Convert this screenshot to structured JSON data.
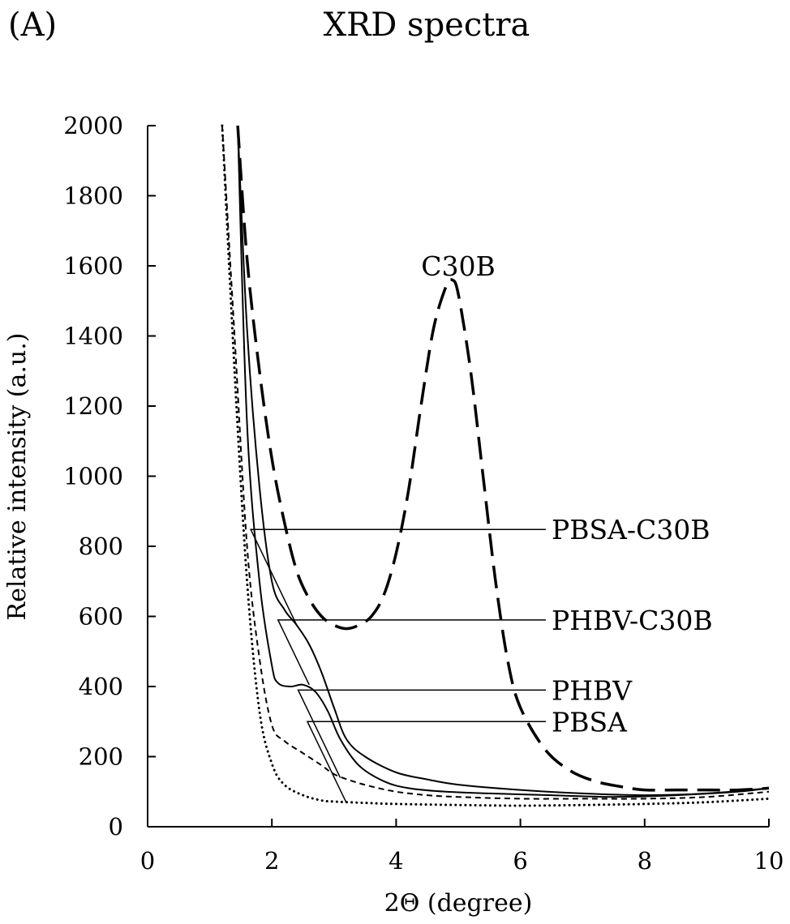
{
  "panel_label": "(A)",
  "chart_data": {
    "type": "line",
    "title": "XRD spectra",
    "xlabel": "2Θ (degree)",
    "ylabel": "Relative intensity (a.u.)",
    "xlim": [
      0,
      10
    ],
    "ylim": [
      0,
      2000
    ],
    "x_ticks": [
      0,
      2,
      4,
      6,
      8,
      10
    ],
    "y_ticks": [
      0,
      200,
      400,
      600,
      800,
      1000,
      1200,
      1400,
      1600,
      1800,
      2000
    ],
    "grid": false,
    "legend": "none (series labeled inline with leader lines)",
    "series": [
      {
        "name": "C30B",
        "style": "long-dash",
        "x": [
          1.45,
          1.6,
          1.8,
          2.0,
          2.2,
          2.4,
          2.6,
          2.8,
          3.0,
          3.2,
          3.4,
          3.6,
          3.8,
          4.0,
          4.2,
          4.4,
          4.6,
          4.8,
          4.9,
          5.0,
          5.2,
          5.4,
          5.6,
          5.8,
          6.0,
          6.4,
          6.8,
          7.2,
          7.6,
          8.0,
          8.5,
          9.0,
          9.5,
          10.0
        ],
        "y": [
          2000,
          1620,
          1300,
          1050,
          870,
          730,
          650,
          600,
          575,
          565,
          575,
          600,
          660,
          780,
          960,
          1200,
          1420,
          1540,
          1560,
          1520,
          1300,
          1000,
          700,
          470,
          340,
          220,
          160,
          130,
          115,
          105,
          105,
          105,
          105,
          110
        ]
      },
      {
        "name": "PBSA-C30B",
        "style": "solid",
        "x": [
          1.45,
          1.6,
          1.8,
          2.0,
          2.2,
          2.4,
          2.6,
          2.8,
          3.0,
          3.2,
          3.5,
          4.0,
          4.5,
          5.0,
          6.0,
          7.0,
          8.0,
          9.0,
          10.0
        ],
        "y": [
          2000,
          1420,
          970,
          700,
          620,
          575,
          520,
          440,
          340,
          250,
          200,
          155,
          135,
          120,
          105,
          95,
          90,
          95,
          110
        ]
      },
      {
        "name": "PHBV-C30B",
        "style": "solid",
        "x": [
          1.45,
          1.6,
          1.8,
          2.0,
          2.1,
          2.3,
          2.5,
          2.7,
          2.9,
          3.1,
          3.4,
          3.8,
          4.2,
          4.8,
          5.5,
          6.5,
          7.5,
          8.5,
          9.5,
          10.0
        ],
        "y": [
          2000,
          1150,
          700,
          460,
          410,
          400,
          405,
          385,
          330,
          250,
          175,
          130,
          110,
          100,
          95,
          90,
          85,
          90,
          100,
          110
        ]
      },
      {
        "name": "PHBV",
        "style": "short-dash",
        "x": [
          1.2,
          1.4,
          1.6,
          1.8,
          2.0,
          2.2,
          2.5,
          2.8,
          3.0,
          3.3,
          3.6,
          4.0,
          4.5,
          5.0,
          6.0,
          7.0,
          8.0,
          9.0,
          10.0
        ],
        "y": [
          2000,
          1400,
          800,
          480,
          290,
          245,
          210,
          175,
          150,
          130,
          115,
          100,
          90,
          85,
          80,
          80,
          80,
          85,
          100
        ]
      },
      {
        "name": "PBSA",
        "style": "dotted",
        "x": [
          1.2,
          1.4,
          1.6,
          1.8,
          2.0,
          2.2,
          2.5,
          2.8,
          3.0,
          3.5,
          4.0,
          5.0,
          6.0,
          7.0,
          8.0,
          9.0,
          10.0
        ],
        "y": [
          2000,
          1300,
          700,
          330,
          180,
          120,
          90,
          75,
          72,
          68,
          65,
          62,
          60,
          62,
          65,
          70,
          80
        ]
      }
    ],
    "annotations": [
      {
        "text": "C30B",
        "x": 5.0,
        "y": 1600
      },
      {
        "text": "PBSA-C30B",
        "target_series": "PBSA-C30B",
        "target_x": 2.4,
        "target_y": 575,
        "label_y": 848
      },
      {
        "text": "PHBV-C30B",
        "target_series": "PHBV-C30B",
        "target_x": 2.6,
        "target_y": 405,
        "label_y": 590
      },
      {
        "text": "PHBV",
        "target_series": "PHBV",
        "target_x": 3.1,
        "target_y": 140,
        "label_y": 390
      },
      {
        "text": "PBSA",
        "target_series": "PBSA",
        "target_x": 3.2,
        "target_y": 68,
        "label_y": 300
      }
    ]
  }
}
